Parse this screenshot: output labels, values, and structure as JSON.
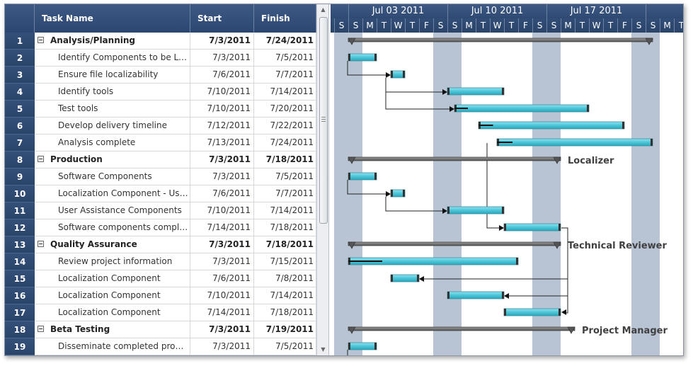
{
  "grid": {
    "columns": {
      "task_name": "Task Name",
      "start": "Start",
      "finish": "Finish"
    },
    "rows": [
      {
        "id": "1",
        "name": "Analysis/Planning",
        "start": "7/3/2011",
        "finish": "7/24/2011",
        "summary": true
      },
      {
        "id": "2",
        "name": "Identify Components to be Locali...",
        "start": "7/3/2011",
        "finish": "7/5/2011",
        "summary": false
      },
      {
        "id": "3",
        "name": "Ensure file localizability",
        "start": "7/6/2011",
        "finish": "7/7/2011",
        "summary": false
      },
      {
        "id": "4",
        "name": "Identify tools",
        "start": "7/10/2011",
        "finish": "7/14/2011",
        "summary": false
      },
      {
        "id": "5",
        "name": "Test tools",
        "start": "7/10/2011",
        "finish": "7/20/2011",
        "summary": false
      },
      {
        "id": "6",
        "name": "Develop delivery timeline",
        "start": "7/12/2011",
        "finish": "7/22/2011",
        "summary": false
      },
      {
        "id": "7",
        "name": "Analysis complete",
        "start": "7/13/2011",
        "finish": "7/24/2011",
        "summary": false
      },
      {
        "id": "8",
        "name": "Production",
        "start": "7/3/2011",
        "finish": "7/18/2011",
        "summary": true
      },
      {
        "id": "9",
        "name": "Software Components",
        "start": "7/3/2011",
        "finish": "7/5/2011",
        "summary": false
      },
      {
        "id": "10",
        "name": "Localization Component - User I...",
        "start": "7/6/2011",
        "finish": "7/7/2011",
        "summary": false
      },
      {
        "id": "11",
        "name": "User Assistance Components",
        "start": "7/10/2011",
        "finish": "7/14/2011",
        "summary": false
      },
      {
        "id": "12",
        "name": "Software components complete",
        "start": "7/14/2011",
        "finish": "7/18/2011",
        "summary": false
      },
      {
        "id": "13",
        "name": "Quality Assurance",
        "start": "7/3/2011",
        "finish": "7/18/2011",
        "summary": true
      },
      {
        "id": "14",
        "name": "Review project information",
        "start": "7/3/2011",
        "finish": "7/15/2011",
        "summary": false
      },
      {
        "id": "15",
        "name": "Localization Component",
        "start": "7/6/2011",
        "finish": "7/8/2011",
        "summary": false
      },
      {
        "id": "16",
        "name": "Localization Component",
        "start": "7/10/2011",
        "finish": "7/14/2011",
        "summary": false
      },
      {
        "id": "17",
        "name": "Localization Component",
        "start": "7/14/2011",
        "finish": "7/18/2011",
        "summary": false
      },
      {
        "id": "18",
        "name": "Beta Testing",
        "start": "7/3/2011",
        "finish": "7/19/2011",
        "summary": true
      },
      {
        "id": "19",
        "name": "Disseminate completed product",
        "start": "7/3/2011",
        "finish": "7/5/2011",
        "summary": false
      }
    ]
  },
  "timeline": {
    "weeks": [
      "Jul 03 2011",
      "Jul 10 2011",
      "Jul 17 2011",
      "Jul"
    ],
    "days": [
      "S",
      "S",
      "M",
      "T",
      "W",
      "T",
      "F",
      "S",
      "S",
      "M",
      "T",
      "W",
      "T",
      "F",
      "S",
      "S",
      "M",
      "T",
      "W",
      "T",
      "F",
      "S",
      "S",
      "M",
      "T"
    ],
    "resources": [
      {
        "row": 8,
        "label": "Localizer"
      },
      {
        "row": 13,
        "label": "Technical Reviewer"
      },
      {
        "row": 18,
        "label": "Project Manager"
      }
    ],
    "bars": [
      {
        "row": 1,
        "summary": true,
        "start_day": 1,
        "end_day": 22.5,
        "progress": 0
      },
      {
        "row": 2,
        "start_day": 1,
        "end_day": 3,
        "progress": 0
      },
      {
        "row": 3,
        "start_day": 4,
        "end_day": 5,
        "progress": 0
      },
      {
        "row": 4,
        "start_day": 8,
        "end_day": 12,
        "progress": 0
      },
      {
        "row": 5,
        "start_day": 8.5,
        "end_day": 18,
        "progress": 10
      },
      {
        "row": 6,
        "start_day": 10.2,
        "end_day": 20.5,
        "progress": 10
      },
      {
        "row": 7,
        "start_day": 11.5,
        "end_day": 22.5,
        "progress": 10
      },
      {
        "row": 8,
        "summary": true,
        "start_day": 1,
        "end_day": 16,
        "progress": 0
      },
      {
        "row": 9,
        "start_day": 1,
        "end_day": 3,
        "progress": 0
      },
      {
        "row": 10,
        "start_day": 4,
        "end_day": 5,
        "progress": 0
      },
      {
        "row": 11,
        "start_day": 8,
        "end_day": 12,
        "progress": 0
      },
      {
        "row": 12,
        "start_day": 12,
        "end_day": 16,
        "progress": 0
      },
      {
        "row": 13,
        "summary": true,
        "start_day": 1,
        "end_day": 16,
        "progress": 0
      },
      {
        "row": 14,
        "start_day": 1,
        "end_day": 13,
        "progress": 20
      },
      {
        "row": 15,
        "start_day": 4,
        "end_day": 6,
        "progress": 0
      },
      {
        "row": 16,
        "start_day": 8,
        "end_day": 12,
        "progress": 0
      },
      {
        "row": 17,
        "start_day": 12,
        "end_day": 16,
        "progress": 0
      },
      {
        "row": 18,
        "summary": true,
        "start_day": 1,
        "end_day": 17,
        "progress": 0
      },
      {
        "row": 19,
        "start_day": 1,
        "end_day": 3,
        "progress": 0
      }
    ],
    "colors": {
      "bar": "#4cc6d8",
      "summary": "#555555",
      "weekend": "#b8c4d4"
    }
  }
}
